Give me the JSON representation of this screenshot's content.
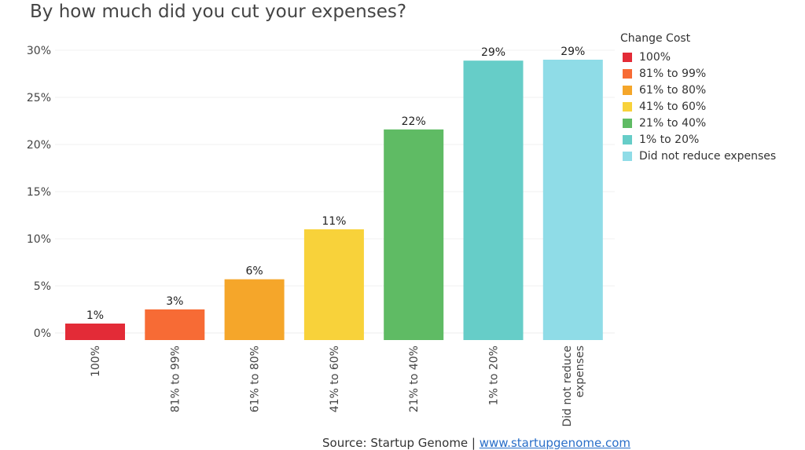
{
  "chart_data": {
    "type": "bar",
    "title": "By how much did you cut your expenses?",
    "xlabel": "",
    "ylabel": "",
    "categories": [
      "100%",
      "81% to 99%",
      "61% to 80%",
      "41% to 60%",
      "21% to 40%",
      "1% to 20%",
      "Did not reduce expenses"
    ],
    "category_lines": [
      [
        "100%"
      ],
      [
        "81% to 99%"
      ],
      [
        "61% to 80%"
      ],
      [
        "41% to 60%"
      ],
      [
        "21% to 40%"
      ],
      [
        "1% to 20%"
      ],
      [
        "Did not reduce",
        "expenses"
      ]
    ],
    "values": [
      1,
      2.5,
      5.7,
      11,
      21.6,
      28.9,
      29
    ],
    "data_labels": [
      "1%",
      "3%",
      "6%",
      "11%",
      "22%",
      "29%",
      "29%"
    ],
    "colors": [
      "#e32b37",
      "#f76b35",
      "#f5a62a",
      "#f8d23a",
      "#5fbb64",
      "#66cdc8",
      "#8fdce7"
    ],
    "ylim": [
      0,
      30
    ],
    "yticks": [
      0,
      5,
      10,
      15,
      20,
      25,
      30
    ],
    "ytick_labels": [
      "0%",
      "5%",
      "10%",
      "15%",
      "20%",
      "25%",
      "30%"
    ],
    "grid": true,
    "legend": {
      "title": "Change Cost",
      "position": "right",
      "entries": [
        "100%",
        "81% to 99%",
        "61% to 80%",
        "41% to 60%",
        "21% to 40%",
        "1% to 20%",
        "Did not reduce expenses"
      ]
    }
  },
  "source": {
    "prefix": "Source: Startup Genome | ",
    "link_text": "www.startupgenome.com"
  }
}
